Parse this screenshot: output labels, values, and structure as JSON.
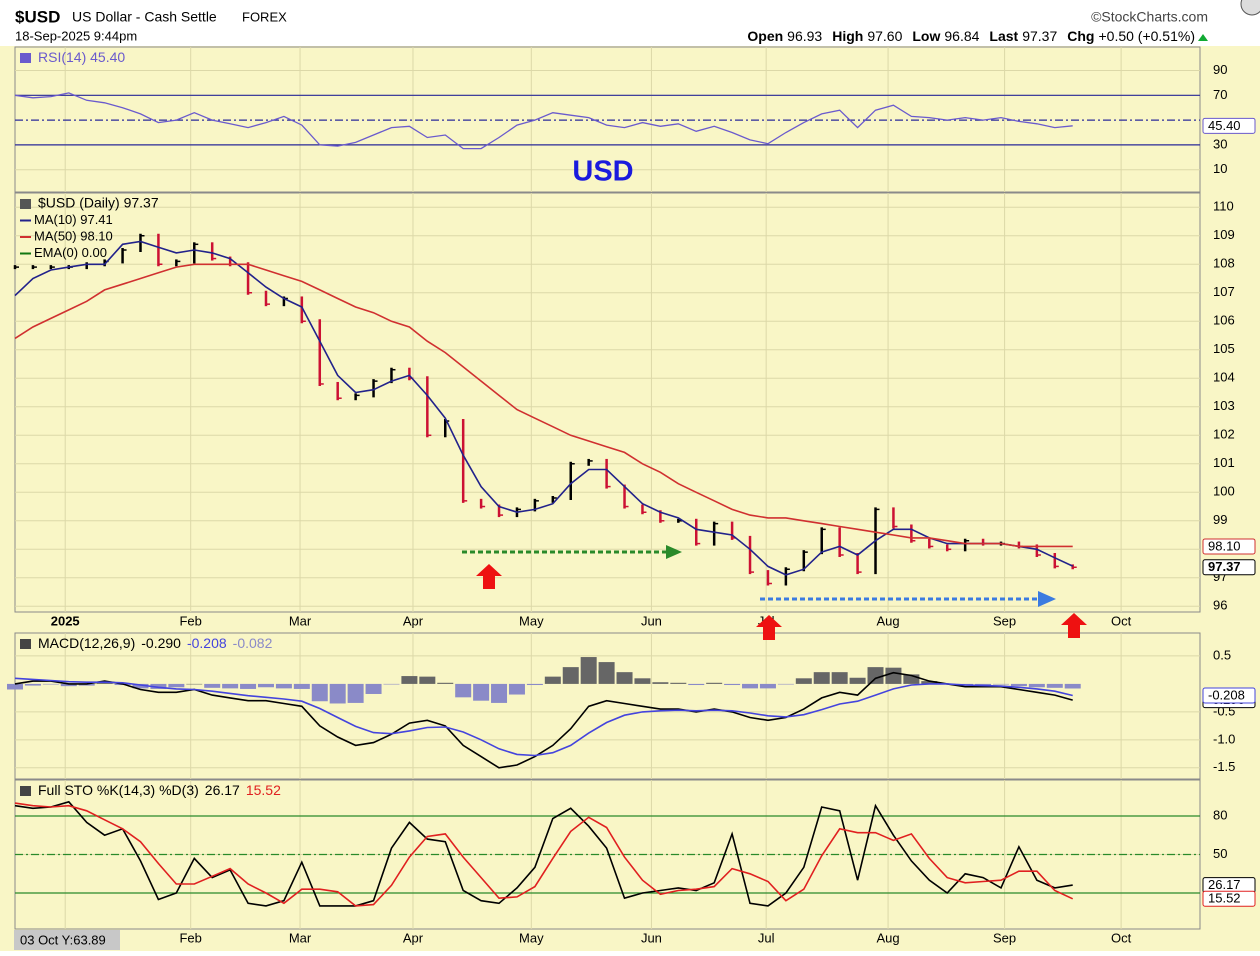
{
  "header": {
    "symbol": "$USD",
    "name": "US Dollar - Cash Settle",
    "exchange": "FOREX",
    "brand": "©StockCharts.com",
    "date": "18-Sep-2025 9:44pm",
    "quote": [
      {
        "label": "Open",
        "value": "96.93"
      },
      {
        "label": "High",
        "value": "97.60"
      },
      {
        "label": "Low",
        "value": "96.84"
      },
      {
        "label": "Last",
        "value": "97.37"
      },
      {
        "label": "Chg",
        "value": "+0.50 (+0.51%)"
      }
    ],
    "annotation": "USD",
    "cursor_label": "03 Oct Y:63.89"
  },
  "chart_data": [
    {
      "type": "line",
      "legend": "inline",
      "ylim": [
        -8,
        109
      ],
      "yticks": [
        90,
        70,
        30,
        10
      ],
      "levels": [
        70,
        50,
        30
      ],
      "level_color": "#2a2a9a",
      "series": [
        {
          "name": "RSI(14) 45.40",
          "color": "#6a5acd",
          "last_label": "45.40",
          "values": [
            70,
            68,
            69,
            72,
            66,
            64,
            60,
            55,
            48,
            50,
            56,
            50,
            47,
            44,
            48,
            53,
            46,
            30,
            29,
            32,
            38,
            44,
            45,
            36,
            38,
            27,
            27,
            36,
            46,
            50,
            56,
            54,
            52,
            46,
            44,
            48,
            45,
            47,
            41,
            45,
            40,
            34,
            31,
            40,
            48,
            55,
            58,
            44,
            58,
            62,
            53,
            52,
            50,
            52,
            50,
            52,
            49,
            47,
            44,
            45.4
          ]
        }
      ]
    },
    {
      "type": "line",
      "legend": "stacked",
      "xlim": [
        0,
        66.1
      ],
      "xticks": [
        {
          "value": 2.8,
          "label": "2025"
        },
        {
          "value": 9.8,
          "label": "Feb"
        },
        {
          "value": 15.9,
          "label": "Mar"
        },
        {
          "value": 22.2,
          "label": "Apr"
        },
        {
          "value": 28.8,
          "label": "May"
        },
        {
          "value": 35.5,
          "label": "Jun"
        },
        {
          "value": 41.9,
          "label": "Jul"
        },
        {
          "value": 48.7,
          "label": "Aug"
        },
        {
          "value": 55.2,
          "label": "Sep"
        },
        {
          "value": 61.7,
          "label": "Oct"
        }
      ],
      "ylim": [
        95.8,
        110.5
      ],
      "yticks": [
        96,
        97,
        98,
        99,
        100,
        101,
        102,
        103,
        104,
        105,
        106,
        107,
        108,
        109,
        110
      ],
      "series": [
        {
          "name": "$USD (Daily) 97.37",
          "style": "hlc",
          "color": "#000000",
          "up_color": "#000000",
          "down_color": "#cc1133",
          "last_label": "97.37",
          "values": [
            107.9,
            107.9,
            107.9,
            107.9,
            108.0,
            108.1,
            108.5,
            109.0,
            108.0,
            108.1,
            108.7,
            108.2,
            108.0,
            107.0,
            106.6,
            106.8,
            106.0,
            103.8,
            103.3,
            103.4,
            103.9,
            104.3,
            104.0,
            102.0,
            102.5,
            99.7,
            99.5,
            99.2,
            99.4,
            99.7,
            99.8,
            101.0,
            101.1,
            100.2,
            99.5,
            99.3,
            99.0,
            99.0,
            98.2,
            98.9,
            98.4,
            97.2,
            96.8,
            97.3,
            97.9,
            98.7,
            97.8,
            97.2,
            99.4,
            98.8,
            98.3,
            98.1,
            98.0,
            98.3,
            98.2,
            98.2,
            98.1,
            97.8,
            97.4,
            97.37
          ]
        },
        {
          "name": "MA(10) 97.41",
          "color": "#22228b",
          "values": [
            106.9,
            107.5,
            107.8,
            107.9,
            108.0,
            108.0,
            108.7,
            108.8,
            108.6,
            108.4,
            108.5,
            108.4,
            108.2,
            107.7,
            107.2,
            106.8,
            106.5,
            105.3,
            104.1,
            103.5,
            103.6,
            103.9,
            104.1,
            103.4,
            102.6,
            101.3,
            100.2,
            99.5,
            99.3,
            99.4,
            99.6,
            100.3,
            100.8,
            100.8,
            100.2,
            99.6,
            99.3,
            99.1,
            98.7,
            98.6,
            98.5,
            98.0,
            97.4,
            97.1,
            97.3,
            97.9,
            98.1,
            97.8,
            98.3,
            98.7,
            98.7,
            98.4,
            98.2,
            98.2,
            98.2,
            98.2,
            98.1,
            98.0,
            97.7,
            97.41
          ]
        },
        {
          "name": "MA(50) 98.10",
          "color": "#d03030",
          "last_label": "98.10",
          "values": [
            105.4,
            105.8,
            106.1,
            106.4,
            106.7,
            107.1,
            107.3,
            107.5,
            107.7,
            107.9,
            108.0,
            108.0,
            108.0,
            108.0,
            107.8,
            107.6,
            107.4,
            107.1,
            106.8,
            106.5,
            106.3,
            106.0,
            105.8,
            105.3,
            104.9,
            104.4,
            103.9,
            103.4,
            102.9,
            102.6,
            102.3,
            102.0,
            101.8,
            101.6,
            101.4,
            101.0,
            100.7,
            100.3,
            100.0,
            99.7,
            99.4,
            99.2,
            99.1,
            99.1,
            99.0,
            98.9,
            98.8,
            98.7,
            98.6,
            98.5,
            98.4,
            98.4,
            98.3,
            98.2,
            98.2,
            98.2,
            98.1,
            98.1,
            98.1,
            98.1
          ]
        }
      ],
      "legend_extra": [
        {
          "name": "EMA(0) 0.00",
          "color": "#117711"
        }
      ]
    },
    {
      "type": "line",
      "legend": "inline",
      "label": "MACD(12,26,9)",
      "ylim": [
        -1.7,
        0.91
      ],
      "yticks": [
        0.5,
        {
          "value": -0.5,
          "label": "-0.5"
        },
        {
          "value": -1,
          "label": "-1.0"
        },
        -1.5
      ],
      "series": [
        {
          "name": "-0.290",
          "color": "#000000",
          "last_label": "-0.290",
          "values": [
            0.0,
            0.05,
            0.05,
            0.0,
            0.0,
            0.05,
            0.0,
            -0.1,
            -0.15,
            -0.15,
            -0.1,
            -0.2,
            -0.25,
            -0.3,
            -0.3,
            -0.35,
            -0.4,
            -0.75,
            -0.95,
            -1.1,
            -1.05,
            -0.9,
            -0.7,
            -0.65,
            -0.75,
            -1.1,
            -1.3,
            -1.5,
            -1.45,
            -1.3,
            -1.1,
            -0.8,
            -0.4,
            -0.3,
            -0.35,
            -0.4,
            -0.45,
            -0.45,
            -0.5,
            -0.45,
            -0.5,
            -0.6,
            -0.65,
            -0.6,
            -0.45,
            -0.25,
            -0.15,
            -0.2,
            0.1,
            0.2,
            0.15,
            0.05,
            0.0,
            -0.05,
            -0.05,
            -0.05,
            -0.1,
            -0.15,
            -0.2,
            -0.29
          ]
        },
        {
          "name": "-0.208",
          "color": "#4444dd",
          "last_label": "-0.208",
          "values": [
            0.1,
            0.08,
            0.06,
            0.04,
            0.03,
            0.03,
            0.02,
            -0.02,
            -0.06,
            -0.09,
            -0.1,
            -0.13,
            -0.17,
            -0.21,
            -0.24,
            -0.27,
            -0.31,
            -0.44,
            -0.6,
            -0.76,
            -0.87,
            -0.89,
            -0.84,
            -0.78,
            -0.77,
            -0.86,
            -1.0,
            -1.16,
            -1.26,
            -1.28,
            -1.23,
            -1.1,
            -0.88,
            -0.69,
            -0.56,
            -0.5,
            -0.48,
            -0.47,
            -0.48,
            -0.47,
            -0.48,
            -0.52,
            -0.57,
            -0.59,
            -0.55,
            -0.46,
            -0.36,
            -0.31,
            -0.2,
            -0.09,
            -0.02,
            0.0,
            0.0,
            -0.02,
            -0.03,
            -0.04,
            -0.06,
            -0.09,
            -0.13,
            -0.208
          ]
        },
        {
          "name": "-0.082",
          "style": "bars",
          "color": "#8a8ac8",
          "up_color": "#666666",
          "values": [
            -0.1,
            -0.03,
            -0.01,
            -0.04,
            -0.03,
            0.02,
            -0.02,
            -0.08,
            -0.09,
            -0.06,
            0.0,
            -0.07,
            -0.08,
            -0.09,
            -0.06,
            -0.08,
            -0.09,
            -0.31,
            -0.35,
            -0.34,
            -0.18,
            -0.01,
            0.14,
            0.13,
            0.02,
            -0.24,
            -0.3,
            -0.34,
            -0.19,
            -0.02,
            0.13,
            0.3,
            0.48,
            0.39,
            0.21,
            0.1,
            0.03,
            0.02,
            -0.02,
            0.02,
            -0.02,
            -0.08,
            -0.08,
            -0.01,
            0.1,
            0.21,
            0.21,
            0.11,
            0.3,
            0.29,
            0.17,
            0.05,
            0.0,
            -0.03,
            -0.02,
            -0.01,
            -0.04,
            -0.06,
            -0.07,
            -0.082
          ]
        }
      ]
    },
    {
      "type": "line",
      "legend": "inline",
      "label": "Full STO %K(14,3) %D(3)",
      "ylim": [
        -8,
        108
      ],
      "yticks": [
        80,
        50,
        20
      ],
      "levels": [
        80,
        50,
        20
      ],
      "level_color": "#2a8a2a",
      "series": [
        {
          "name": "26.17",
          "color": "#000000",
          "last_label": "26.17",
          "values": [
            88,
            86,
            87,
            91,
            75,
            65,
            70,
            45,
            15,
            20,
            47,
            32,
            38,
            12,
            10,
            14,
            44,
            10,
            10,
            10,
            14,
            55,
            75,
            62,
            60,
            22,
            14,
            12,
            24,
            40,
            78,
            86,
            72,
            55,
            16,
            20,
            22,
            24,
            22,
            28,
            66,
            12,
            10,
            20,
            40,
            87,
            84,
            30,
            88,
            65,
            45,
            30,
            20,
            35,
            32,
            24,
            56,
            30,
            24,
            26.17
          ]
        },
        {
          "name": "15.52",
          "color": "#e02020",
          "last_label": "15.52",
          "values": [
            90,
            88,
            87,
            88,
            84,
            77,
            70,
            60,
            43,
            27,
            27,
            33,
            39,
            27,
            20,
            12,
            23,
            23,
            21,
            10,
            11,
            26,
            48,
            64,
            66,
            48,
            32,
            16,
            17,
            25,
            47,
            68,
            79,
            71,
            48,
            30,
            19,
            22,
            23,
            25,
            39,
            35,
            29,
            14,
            23,
            49,
            70,
            67,
            67,
            61,
            66,
            47,
            32,
            28,
            29,
            30,
            37,
            37,
            22,
            15.52
          ]
        }
      ]
    }
  ]
}
